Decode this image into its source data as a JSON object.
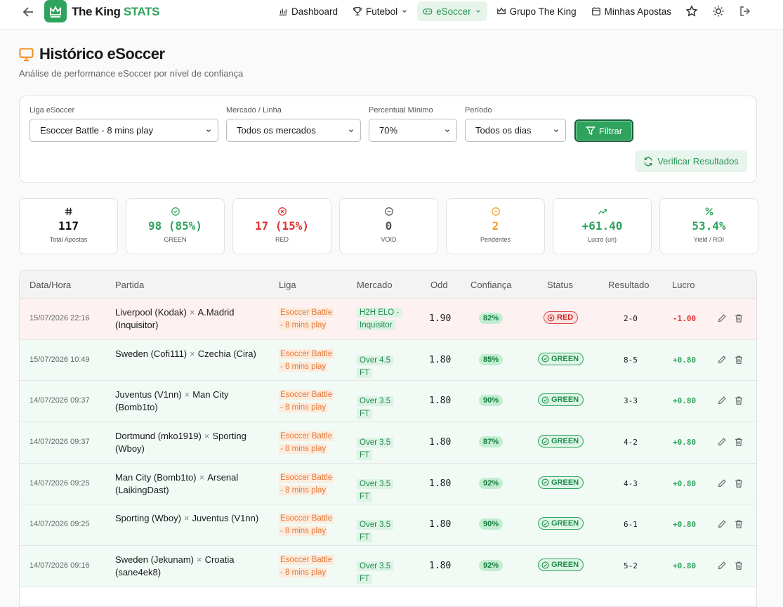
{
  "nav": {
    "brand": "The King",
    "brand_accent": "STATS",
    "items": [
      "Dashboard",
      "Futebol",
      "eSoccer",
      "Grupo The King",
      "Minhas Apostas"
    ]
  },
  "header": {
    "title": "Histórico eSoccer",
    "subtitle": "Análise de performance eSoccer por nível de confiança"
  },
  "filters": {
    "fields": [
      {
        "label": "Liga eSoccer",
        "value": "Esoccer Battle - 8 mins play"
      },
      {
        "label": "Mercado / Linha",
        "value": "Todos os mercados"
      },
      {
        "label": "Percentual Mínimo",
        "value": "70%"
      },
      {
        "label": "Período",
        "value": "Todos os dias"
      }
    ],
    "filter_button": "Filtrar",
    "verify_button": "Verificar Resultados"
  },
  "stats": [
    {
      "value": "117",
      "label": "Total Apostas"
    },
    {
      "value": "98 (85%)",
      "label": "GREEN"
    },
    {
      "value": "17 (15%)",
      "label": "RED"
    },
    {
      "value": "0",
      "label": "VOID"
    },
    {
      "value": "2",
      "label": "Pendentes"
    },
    {
      "value": "+61.40",
      "label": "Lucro (un)"
    },
    {
      "value": "53.4%",
      "label": "Yield / ROI"
    }
  ],
  "table": {
    "headers": [
      "Data/Hora",
      "Partida",
      "Liga",
      "Mercado",
      "Odd",
      "Confiança",
      "Status",
      "Resultado",
      "Lucro"
    ],
    "separator": "×",
    "rows": [
      {
        "date": "15/07/2026 22:16",
        "home": "Liverpool (Kodak)",
        "away": "A.Madrid (Inquisitor)",
        "league": "Esoccer Battle - 8 mins play",
        "market": "H2H ELO - Inquisitor",
        "odd": "1.90",
        "confidence": "82%",
        "status": "RED",
        "result": "2-0",
        "profit": "-1.00"
      },
      {
        "date": "15/07/2026 10:49",
        "home": "Sweden (Cofi111)",
        "away": "Czechia (Cira)",
        "league": "Esoccer Battle - 8 mins play",
        "market": "Over 4.5 FT",
        "odd": "1.80",
        "confidence": "85%",
        "status": "GREEN",
        "result": "8-5",
        "profit": "+0.80"
      },
      {
        "date": "14/07/2026 09:37",
        "home": "Juventus (V1nn)",
        "away": "Man City (Bomb1to)",
        "league": "Esoccer Battle - 8 mins play",
        "market": "Over 3.5 FT",
        "odd": "1.80",
        "confidence": "90%",
        "status": "GREEN",
        "result": "3-3",
        "profit": "+0.80"
      },
      {
        "date": "14/07/2026 09:37",
        "home": "Dortmund (mko1919)",
        "away": "Sporting (Wboy)",
        "league": "Esoccer Battle - 8 mins play",
        "market": "Over 3.5 FT",
        "odd": "1.80",
        "confidence": "87%",
        "status": "GREEN",
        "result": "4-2",
        "profit": "+0.80"
      },
      {
        "date": "14/07/2026 09:25",
        "home": "Man City (Bomb1to)",
        "away": "Arsenal (LaikingDast)",
        "league": "Esoccer Battle - 8 mins play",
        "market": "Over 3.5 FT",
        "odd": "1.80",
        "confidence": "92%",
        "status": "GREEN",
        "result": "4-3",
        "profit": "+0.80"
      },
      {
        "date": "14/07/2026 09:25",
        "home": "Sporting (Wboy)",
        "away": "Juventus (V1nn)",
        "league": "Esoccer Battle - 8 mins play",
        "market": "Over 3.5 FT",
        "odd": "1.80",
        "confidence": "90%",
        "status": "GREEN",
        "result": "6-1",
        "profit": "+0.80"
      },
      {
        "date": "14/07/2026 09:16",
        "home": "Sweden (Jekunam)",
        "away": "Croatia (sane4ek8)",
        "league": "Esoccer Battle - 8 mins play",
        "market": "Over 3.5 FT",
        "odd": "1.80",
        "confidence": "92%",
        "status": "GREEN",
        "result": "5-2",
        "profit": "+0.80"
      }
    ]
  }
}
